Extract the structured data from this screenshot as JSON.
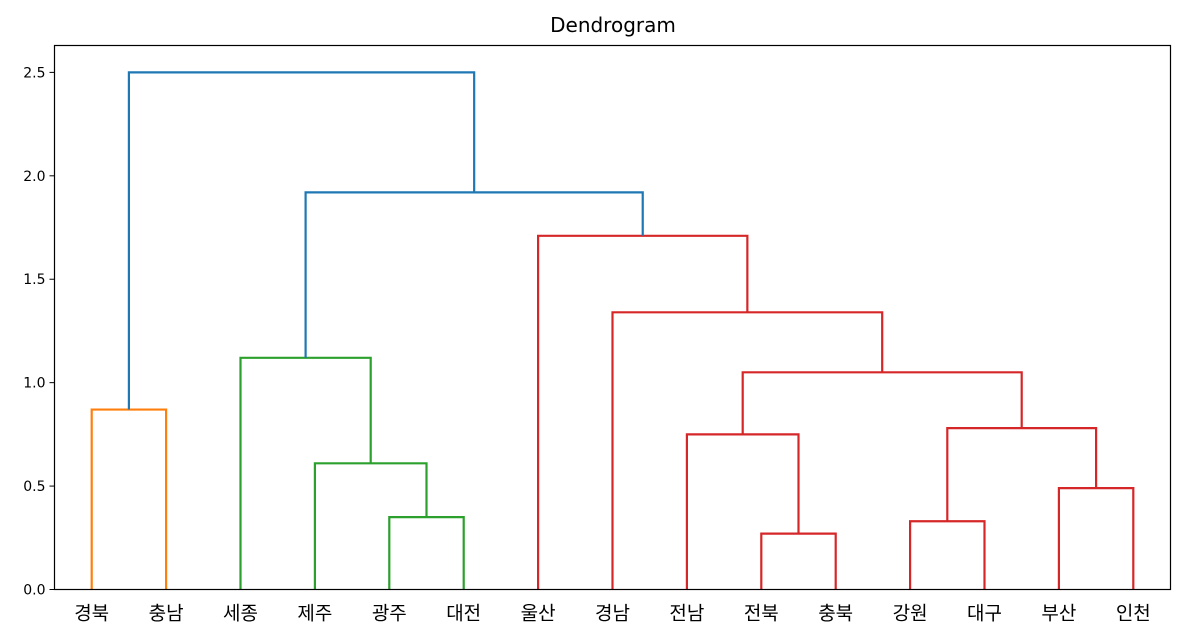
{
  "chart_data": {
    "type": "dendrogram",
    "title": "Dendrogram",
    "xlabel": "",
    "ylabel": "",
    "ylim": [
      0,
      2.63
    ],
    "yticks": [
      "0.0",
      "0.5",
      "1.0",
      "1.5",
      "2.0",
      "2.5"
    ],
    "ytick_values": [
      0,
      0.5,
      1.0,
      1.5,
      2.0,
      2.5
    ],
    "grid": false,
    "leaves": [
      "경북",
      "충남",
      "세종",
      "제주",
      "광주",
      "대전",
      "울산",
      "경남",
      "전남",
      "전북",
      "충북",
      "강원",
      "대구",
      "부산",
      "인천"
    ],
    "colors": {
      "orange": "#ff7f0e",
      "green": "#2ca02c",
      "red": "#d62728",
      "blue": "#1f77b4",
      "axis": "#000000"
    },
    "links": [
      {
        "left": "경북",
        "right": "충남",
        "height": 0.87,
        "color": "orange"
      },
      {
        "left": "광주",
        "right": "대전",
        "height": 0.35,
        "color": "green"
      },
      {
        "left": "제주",
        "right": "광주+대전",
        "height": 0.61,
        "color": "green"
      },
      {
        "left": "세종",
        "right": "제주+광주+대전",
        "height": 1.12,
        "color": "green"
      },
      {
        "left": "전북",
        "right": "충북",
        "height": 0.27,
        "color": "red"
      },
      {
        "left": "전남",
        "right": "전북+충북",
        "height": 0.75,
        "color": "red"
      },
      {
        "left": "강원",
        "right": "대구",
        "height": 0.33,
        "color": "red"
      },
      {
        "left": "부산",
        "right": "인천",
        "height": 0.49,
        "color": "red"
      },
      {
        "left": "강원+대구",
        "right": "부산+인천",
        "height": 0.78,
        "color": "red"
      },
      {
        "left": "전남+전북+충북",
        "right": "강원+대구+부산+인천",
        "height": 1.05,
        "color": "red"
      },
      {
        "left": "경남",
        "right": "전남…인천",
        "height": 1.34,
        "color": "red"
      },
      {
        "left": "울산",
        "right": "경남…인천",
        "height": 1.71,
        "color": "red"
      },
      {
        "left": "세종+제주+광주+대전",
        "right": "울산…인천",
        "height": 1.92,
        "color": "blue"
      },
      {
        "left": "경북+충남",
        "right": "세종…인천",
        "height": 2.5,
        "color": "blue"
      }
    ]
  }
}
